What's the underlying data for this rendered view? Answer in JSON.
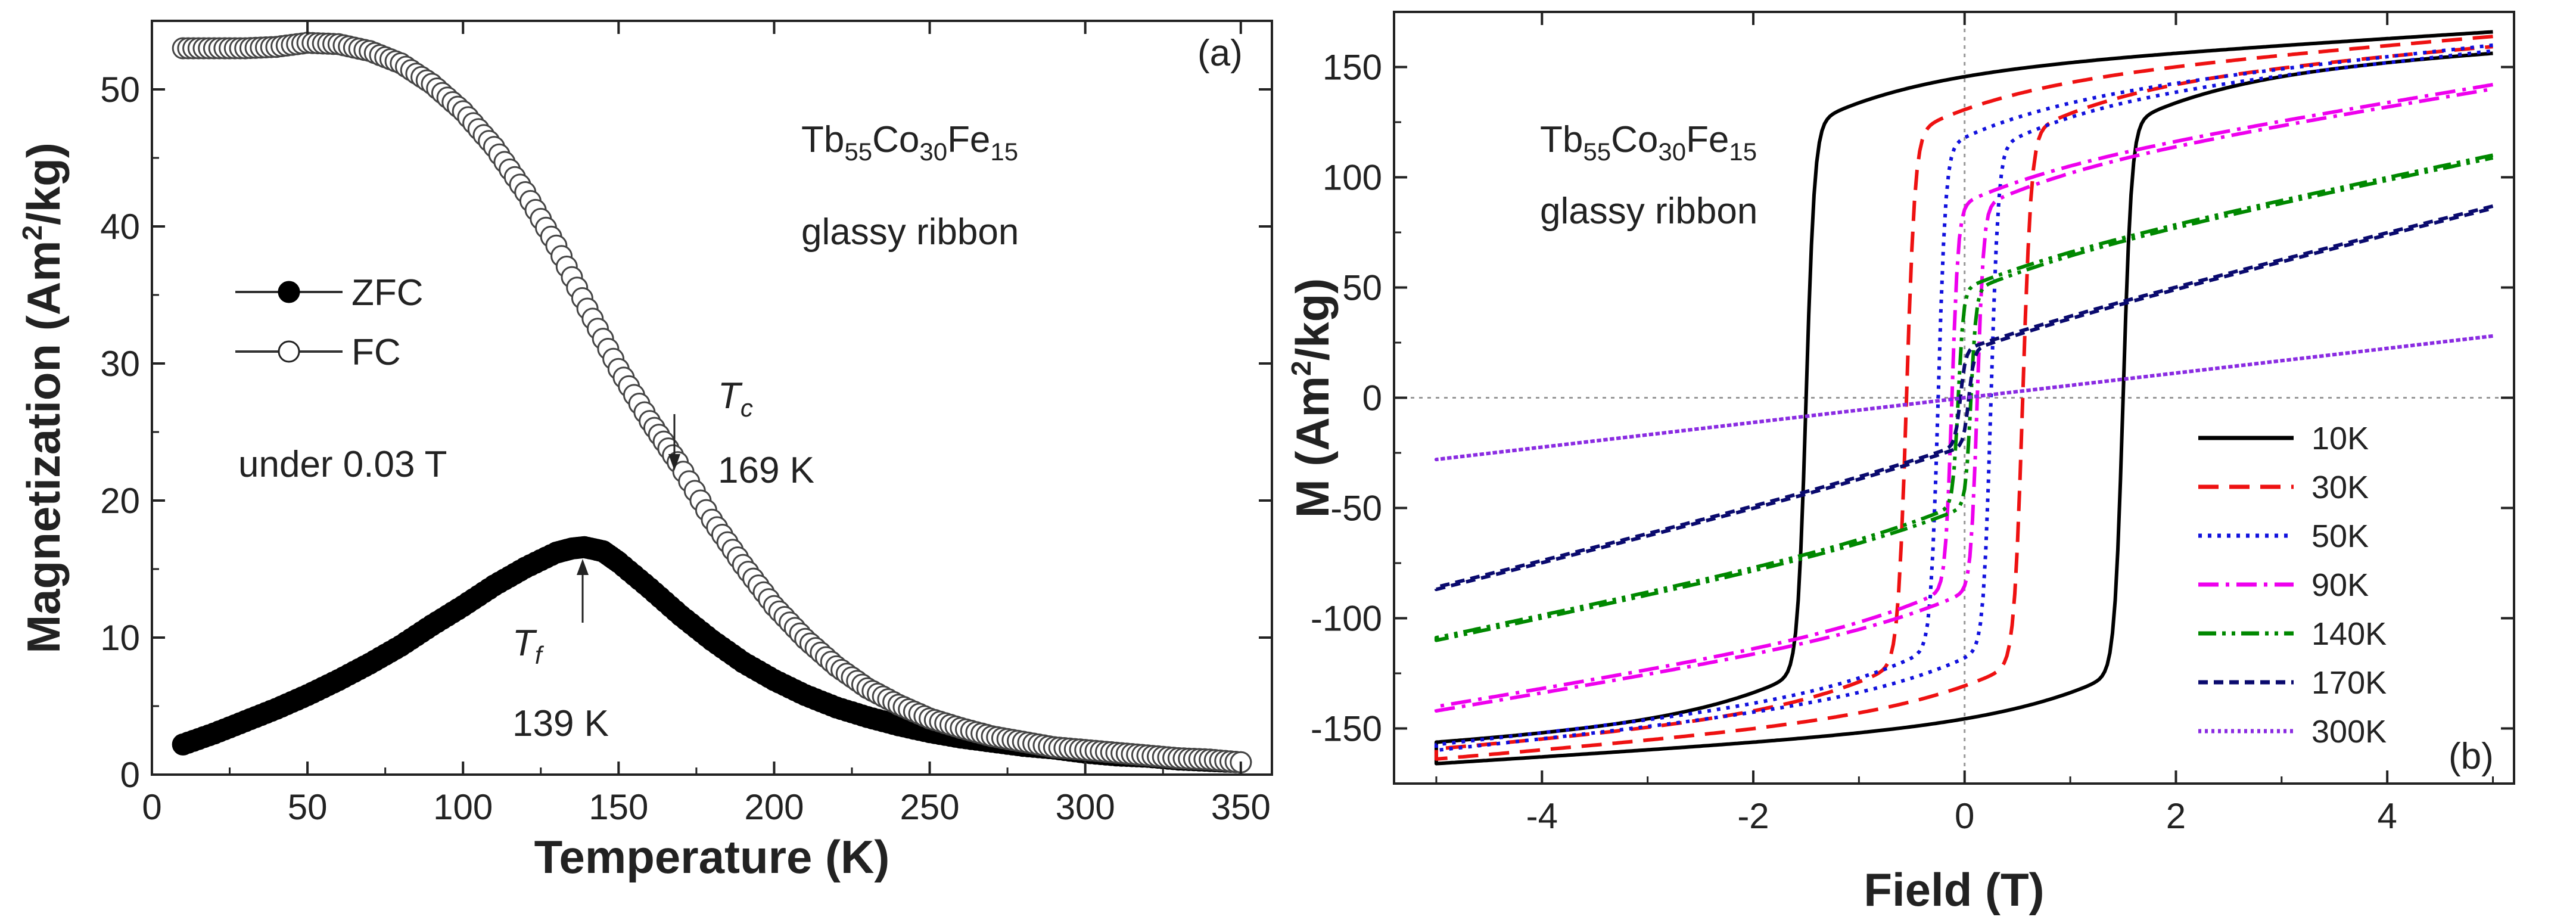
{
  "chart_data": [
    {
      "panel_label": "(a)",
      "type": "scatter",
      "xlabel": "Temperature (K)",
      "ylabel": {
        "pre": "Magnetization (Am",
        "sup": "2",
        "post": "/kg)"
      },
      "xlim": [
        0,
        360
      ],
      "ylim": [
        0,
        55
      ],
      "xticks": [
        "0",
        "50",
        "100",
        "150",
        "200",
        "250",
        "300",
        "350"
      ],
      "yticks": [
        "0",
        "10",
        "20",
        "30",
        "40",
        "50"
      ],
      "sample": {
        "parts": [
          {
            "text": "Tb",
            "sub": "55"
          },
          {
            "text": "Co",
            "sub": "30"
          },
          {
            "text": "Fe",
            "sub": "15"
          }
        ],
        "line2": "glassy ribbon"
      },
      "field_note": "under 0.03 T",
      "legend": [
        {
          "label": "ZFC",
          "marker": "filled-circle"
        },
        {
          "label": "FC",
          "marker": "open-circle"
        }
      ],
      "annotations": [
        {
          "symbol": "T",
          "subscript": "c",
          "value": "169 K",
          "x": 169,
          "y": 23
        },
        {
          "symbol": "T",
          "subscript": "f",
          "value": "139 K",
          "x": 139,
          "y": 16.6
        }
      ],
      "series": [
        {
          "name": "ZFC",
          "marker": "filled-circle",
          "x": [
            10,
            20,
            30,
            40,
            50,
            60,
            70,
            80,
            90,
            100,
            110,
            120,
            130,
            135,
            139,
            145,
            150,
            160,
            170,
            180,
            190,
            200,
            210,
            220,
            230,
            240,
            250,
            260,
            270,
            280,
            290,
            300,
            310,
            320,
            330,
            340,
            350
          ],
          "y": [
            2.2,
            3.0,
            3.9,
            4.8,
            5.8,
            6.9,
            8.1,
            9.4,
            10.9,
            12.3,
            13.8,
            15.1,
            16.2,
            16.5,
            16.6,
            16.3,
            15.5,
            13.6,
            11.6,
            9.8,
            8.2,
            6.9,
            5.8,
            4.9,
            4.2,
            3.6,
            3.1,
            2.7,
            2.4,
            2.1,
            1.9,
            1.6,
            1.4,
            1.3,
            1.1,
            1.0,
            0.9
          ]
        },
        {
          "name": "FC",
          "marker": "open-circle",
          "x": [
            10,
            20,
            30,
            40,
            50,
            60,
            70,
            80,
            90,
            100,
            110,
            120,
            130,
            140,
            150,
            160,
            169,
            180,
            190,
            200,
            210,
            220,
            230,
            240,
            250,
            260,
            270,
            280,
            290,
            300,
            310,
            320,
            330,
            340,
            350
          ],
          "y": [
            53.0,
            53.0,
            53.0,
            53.1,
            53.4,
            53.3,
            52.8,
            51.9,
            50.4,
            48.4,
            45.8,
            42.5,
            38.6,
            34.0,
            29.6,
            25.8,
            22.8,
            18.6,
            15.3,
            12.3,
            9.9,
            7.9,
            6.3,
            5.1,
            4.1,
            3.4,
            2.8,
            2.4,
            2.0,
            1.8,
            1.6,
            1.4,
            1.2,
            1.1,
            0.9
          ]
        }
      ]
    },
    {
      "panel_label": "(b)",
      "type": "line",
      "xlabel": "Field (T)",
      "ylabel": {
        "pre": "M (Am",
        "sup": "2",
        "post": "/kg)"
      },
      "xlim": [
        -5.4,
        5.2
      ],
      "ylim": [
        -175,
        175
      ],
      "xticks": [
        "-4",
        "-2",
        "0",
        "2",
        "4"
      ],
      "xtick_values": [
        -4,
        -2,
        0,
        2,
        4
      ],
      "yticks": [
        "-150",
        "-100",
        "-50",
        "0",
        "50",
        "100",
        "150"
      ],
      "ytick_values": [
        -150,
        -100,
        -50,
        0,
        50,
        100,
        150
      ],
      "sample": {
        "parts": [
          {
            "text": "Tb",
            "sub": "55"
          },
          {
            "text": "Co",
            "sub": "30"
          },
          {
            "text": "Fe",
            "sub": "15"
          }
        ],
        "line2": "glassy ribbon"
      },
      "series": [
        {
          "name": "10K",
          "color": "#000000",
          "dash": "solid",
          "Ms": 160,
          "Mr": 135,
          "Hc": 1.5,
          "chi": 3.0,
          "w": 0.08
        },
        {
          "name": "30K",
          "color": "#ee1111",
          "dash": "dash",
          "Ms": 160,
          "Mr": 128,
          "Hc": 0.55,
          "chi": 4.0,
          "w": 0.08
        },
        {
          "name": "50K",
          "color": "#1111dd",
          "dash": "dot",
          "Ms": 157,
          "Mr": 120,
          "Hc": 0.25,
          "chi": 5.0,
          "w": 0.07
        },
        {
          "name": "90K",
          "color": "#ee00ee",
          "dash": "dashdot",
          "Ms": 141,
          "Mr": 100,
          "Hc": 0.12,
          "chi": 8.0,
          "w": 0.06
        },
        {
          "name": "140K",
          "color": "#008800",
          "dash": "dashdotdot",
          "Ms": 107,
          "Mr": 40,
          "Hc": 0.06,
          "chi": 10.0,
          "w": 0.05
        },
        {
          "name": "170K",
          "color": "#0a0a6e",
          "dash": "shortdash",
          "Ms": 85,
          "Mr": 15,
          "Hc": 0.04,
          "chi": 12.0,
          "w": 0.05
        },
        {
          "name": "300K",
          "color": "#8a2be2",
          "dash": "shortdot",
          "Ms": 28,
          "Mr": 0,
          "Hc": 0.0,
          "chi": 0.0,
          "w": 0.05
        }
      ]
    }
  ]
}
